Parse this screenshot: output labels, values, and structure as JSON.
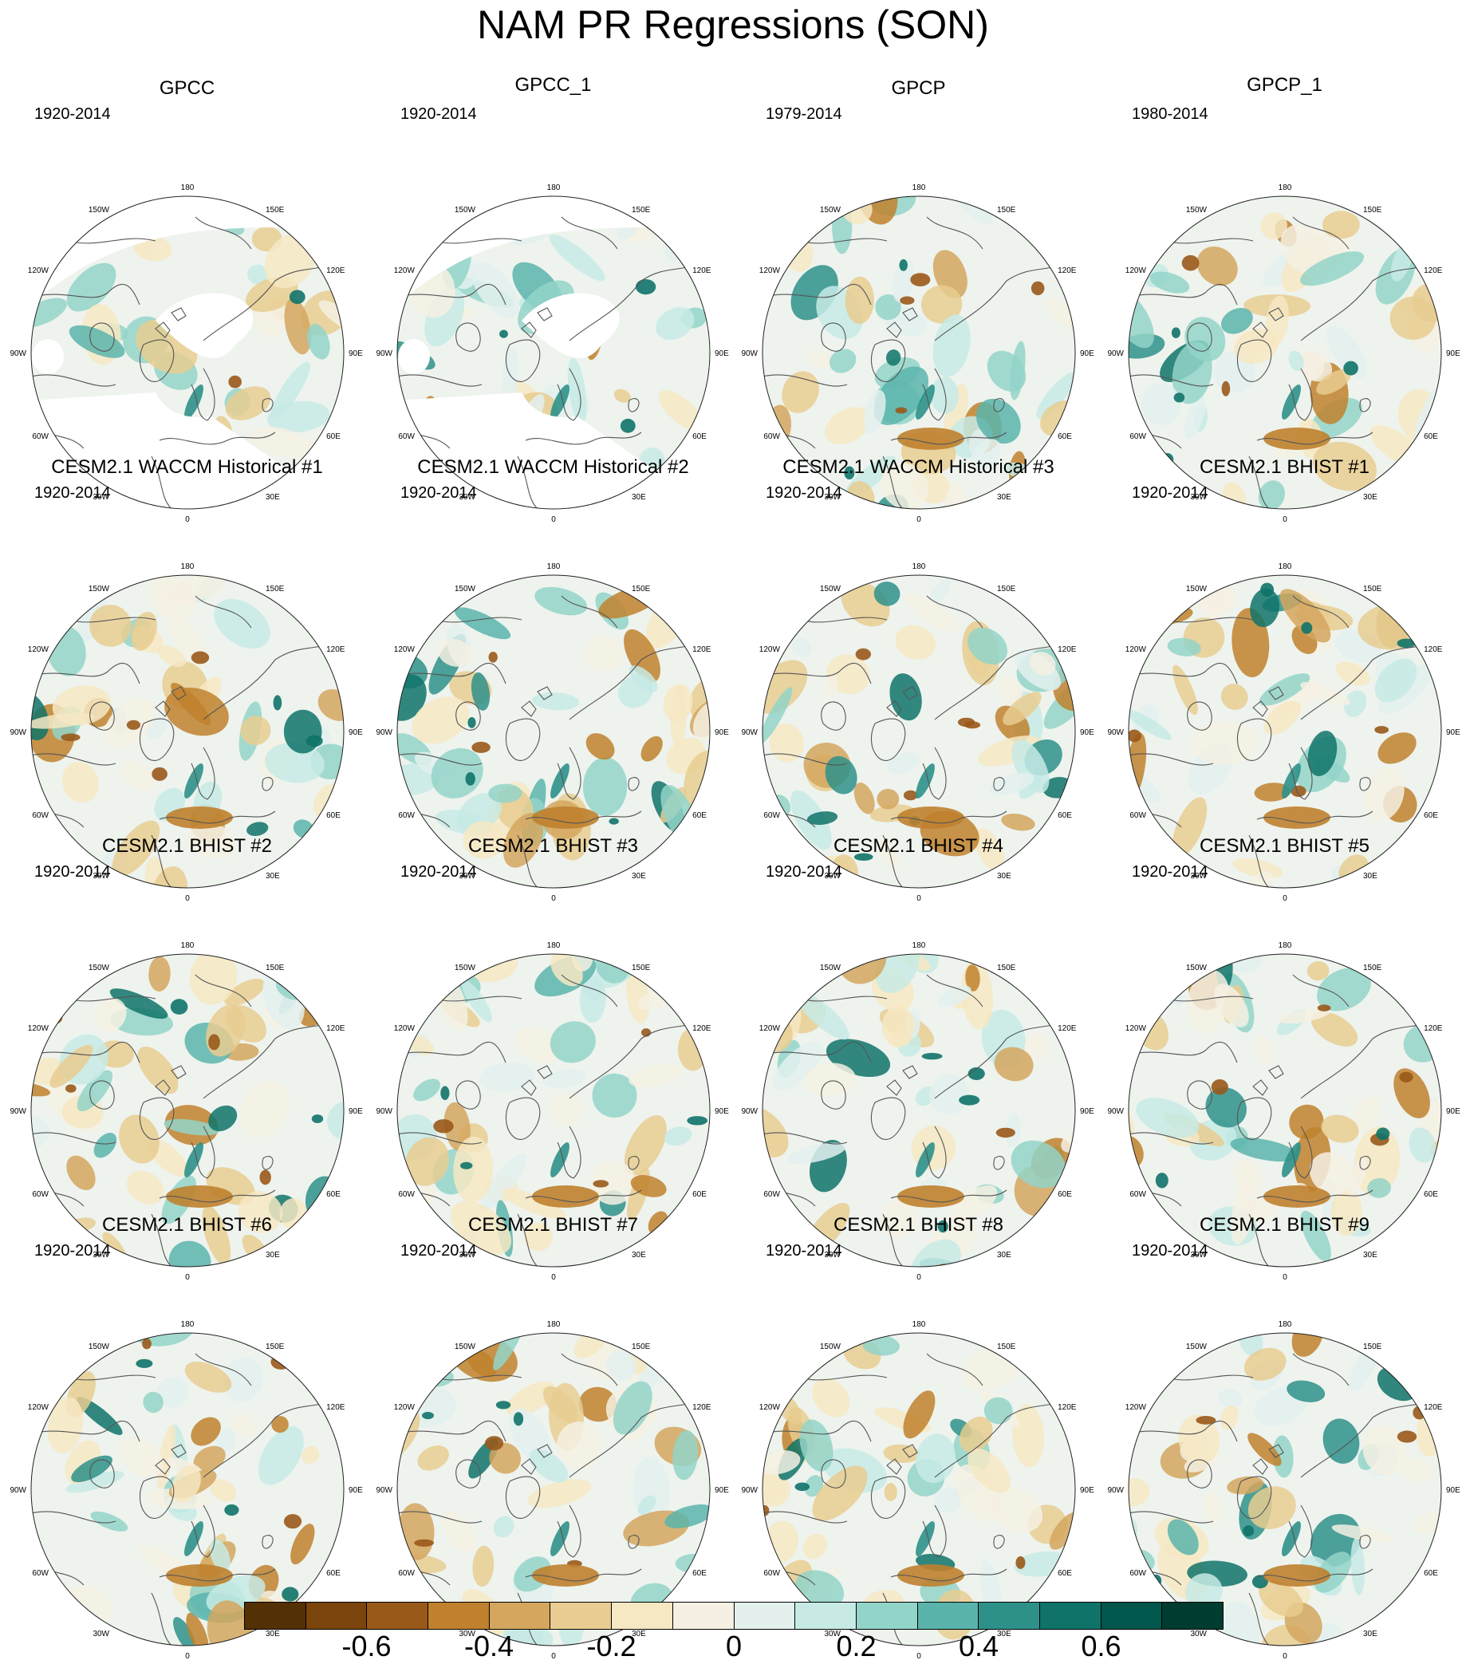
{
  "title": "NAM PR Regressions (SON)",
  "longitude_labels": [
    "180",
    "150E",
    "120E",
    "90E",
    "60E",
    "30E",
    "0",
    "30W",
    "60W",
    "90W",
    "120W",
    "150W"
  ],
  "panels": [
    {
      "title": "GPCC",
      "period": "1920-2014"
    },
    {
      "title": "GPCC_1",
      "period": "1920-2014"
    },
    {
      "title": "GPCP",
      "period": "1979-2014"
    },
    {
      "title": "GPCP_1",
      "period": "1980-2014"
    },
    {
      "title": "CESM2.1 WACCM Historical #1",
      "period": "1920-2014"
    },
    {
      "title": "CESM2.1 WACCM Historical #2",
      "period": "1920-2014"
    },
    {
      "title": "CESM2.1 WACCM Historical #3",
      "period": "1920-2014"
    },
    {
      "title": "CESM2.1 BHIST #1",
      "period": "1920-2014"
    },
    {
      "title": "CESM2.1 BHIST #2",
      "period": "1920-2014"
    },
    {
      "title": "CESM2.1 BHIST #3",
      "period": "1920-2014"
    },
    {
      "title": "CESM2.1 BHIST #4",
      "period": "1920-2014"
    },
    {
      "title": "CESM2.1 BHIST #5",
      "period": "1920-2014"
    },
    {
      "title": "CESM2.1 BHIST #6",
      "period": "1920-2014"
    },
    {
      "title": "CESM2.1 BHIST #7",
      "period": "1920-2014"
    },
    {
      "title": "CESM2.1 BHIST #8",
      "period": "1920-2014"
    },
    {
      "title": "CESM2.1 BHIST #9",
      "period": "1920-2014"
    }
  ],
  "colorbar": {
    "colors": [
      "#543005",
      "#7a440c",
      "#99591a",
      "#bf812d",
      "#d4a65e",
      "#e8cc91",
      "#f6e8c3",
      "#f5f0e3",
      "#e3f0ee",
      "#c7eae5",
      "#93d4c8",
      "#5ab4ac",
      "#2e9189",
      "#0f7369",
      "#01574b",
      "#003c30"
    ],
    "tick_labels": [
      "-0.6",
      "-0.4",
      "-0.2",
      "0",
      "0.2",
      "0.4",
      "0.6"
    ],
    "tick_boundary_index": [
      2,
      4,
      6,
      8,
      10,
      12,
      14
    ],
    "boundaries_count": 16
  }
}
